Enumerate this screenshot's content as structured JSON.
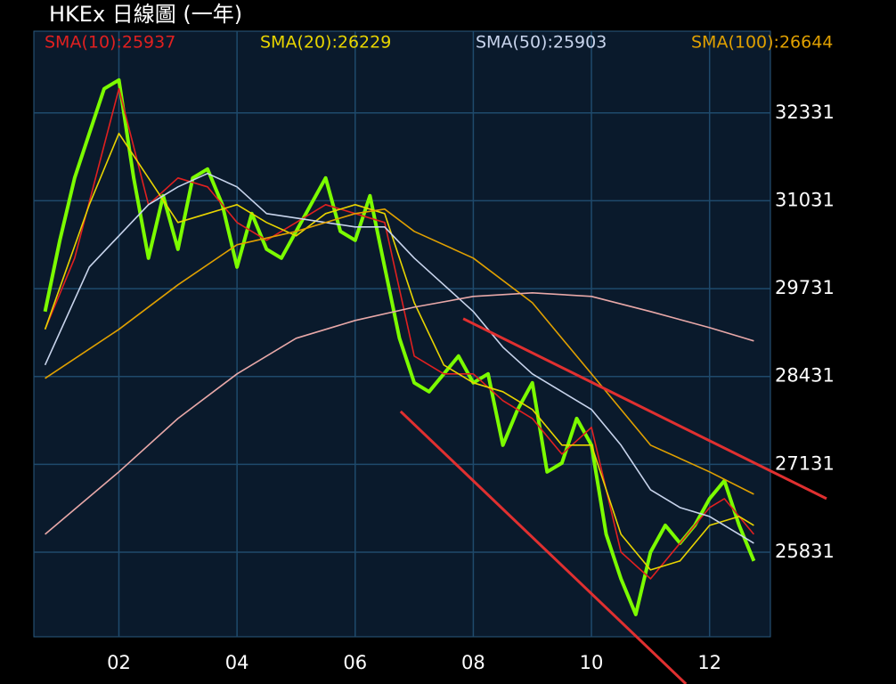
{
  "chart_data": {
    "type": "line",
    "title": "HKEx 日線圖 (一年)",
    "xlim": [
      0.56,
      13.03
    ],
    "ylim": [
      24580,
      33540
    ],
    "xticks": [
      {
        "value": 2,
        "label": "02"
      },
      {
        "value": 4,
        "label": "04"
      },
      {
        "value": 6,
        "label": "06"
      },
      {
        "value": 8,
        "label": "08"
      },
      {
        "value": 10,
        "label": "10"
      },
      {
        "value": 12,
        "label": "12"
      }
    ],
    "yticks": [
      25831,
      27131,
      28431,
      29731,
      31031,
      32331
    ],
    "grid": true,
    "close": {
      "color": "#7cfc00",
      "x": [
        0.75,
        1.0,
        1.25,
        1.5,
        1.75,
        2.0,
        2.25,
        2.5,
        2.75,
        3.0,
        3.25,
        3.5,
        3.75,
        4.0,
        4.25,
        4.5,
        4.75,
        5.0,
        5.25,
        5.5,
        5.75,
        6.0,
        6.25,
        6.5,
        6.75,
        7.0,
        7.25,
        7.5,
        7.75,
        8.0,
        8.25,
        8.5,
        8.75,
        9.0,
        9.25,
        9.5,
        9.75,
        10.0,
        10.25,
        10.5,
        10.75,
        11.0,
        11.25,
        11.5,
        11.75,
        12.0,
        12.25,
        12.5,
        12.75
      ],
      "values": [
        29392,
        30446,
        31369,
        32028,
        32687,
        32818,
        31369,
        30183,
        31105,
        30314,
        31369,
        31500,
        30973,
        30051,
        30842,
        30314,
        30183,
        30578,
        30973,
        31369,
        30578,
        30446,
        31105,
        30051,
        28997,
        28338,
        28206,
        28470,
        28733,
        28338,
        28470,
        27415,
        27942,
        28338,
        27020,
        27151,
        27810,
        27415,
        26097,
        25438,
        24911,
        25833,
        26229,
        25965,
        26229,
        26624,
        26888,
        26229,
        25702
      ]
    },
    "series": [
      {
        "name": "SMA(10):25937",
        "color": "#e02020",
        "x": [
          0.75,
          1.25,
          2.0,
          2.5,
          3.0,
          3.5,
          4.0,
          4.5,
          5.0,
          5.5,
          6.0,
          6.5,
          7.0,
          7.5,
          8.0,
          8.5,
          9.0,
          9.5,
          10.0,
          10.5,
          11.0,
          11.5,
          12.0,
          12.25,
          12.75
        ],
        "values": [
          29128,
          30183,
          32687,
          30973,
          31369,
          31237,
          30710,
          30446,
          30710,
          30973,
          30842,
          30710,
          28733,
          28470,
          28470,
          28074,
          27810,
          27283,
          27678,
          25833,
          25438,
          25965,
          26492,
          26624,
          26097
        ]
      },
      {
        "name": "SMA(20):26229",
        "color": "#e8d400",
        "x": [
          0.75,
          1.5,
          2.0,
          2.5,
          3.0,
          3.5,
          4.0,
          4.5,
          5.0,
          5.5,
          6.0,
          6.5,
          7.0,
          7.5,
          8.0,
          8.5,
          9.0,
          9.5,
          10.0,
          10.5,
          11.0,
          11.5,
          12.0,
          12.5,
          12.75
        ],
        "values": [
          29128,
          30973,
          32028,
          31369,
          30710,
          30842,
          30973,
          30710,
          30512,
          30842,
          30973,
          30842,
          29523,
          28601,
          28338,
          28206,
          27942,
          27415,
          27415,
          26097,
          25570,
          25702,
          26229,
          26360,
          26229
        ]
      },
      {
        "name": "SMA(50):25903",
        "color": "#c8d4ec",
        "x": [
          0.75,
          1.5,
          2.5,
          3.0,
          3.5,
          4.0,
          4.5,
          5.0,
          5.5,
          6.0,
          6.5,
          7.0,
          7.5,
          8.0,
          8.5,
          9.0,
          9.5,
          10.0,
          10.5,
          11.0,
          11.5,
          12.0,
          12.5,
          12.75
        ],
        "values": [
          28601,
          30051,
          30973,
          31237,
          31435,
          31237,
          30842,
          30776,
          30710,
          30644,
          30644,
          30183,
          29787,
          29392,
          28865,
          28470,
          28206,
          27942,
          27415,
          26756,
          26492,
          26360,
          26097,
          25965
        ]
      },
      {
        "name": "SMA(100):26644",
        "color": "#e0a000",
        "x": [
          0.75,
          2.0,
          3.0,
          4.0,
          5.0,
          6.0,
          6.5,
          7.0,
          8.0,
          9.0,
          10.0,
          11.0,
          12.0,
          12.75
        ],
        "values": [
          28404,
          29128,
          29787,
          30380,
          30578,
          30842,
          30907,
          30578,
          30183,
          29523,
          28470,
          27415,
          27020,
          26690
        ]
      },
      {
        "color": "#e8a8a8",
        "x": [
          0.75,
          2.0,
          3.0,
          4.0,
          5.0,
          6.0,
          7.0,
          8.0,
          9.0,
          10.0,
          11.0,
          12.0,
          12.75
        ],
        "values": [
          26097,
          27020,
          27810,
          28470,
          28997,
          29260,
          29457,
          29616,
          29669,
          29616,
          29392,
          29154,
          28957
        ]
      }
    ],
    "trend_lines": [
      {
        "color": "#e03030",
        "x": [
          7.83,
          13.98
        ],
        "values": [
          29286,
          26624
        ]
      },
      {
        "color": "#e03030",
        "x": [
          6.77,
          11.6
        ],
        "values": [
          27915,
          23882
        ]
      }
    ]
  }
}
